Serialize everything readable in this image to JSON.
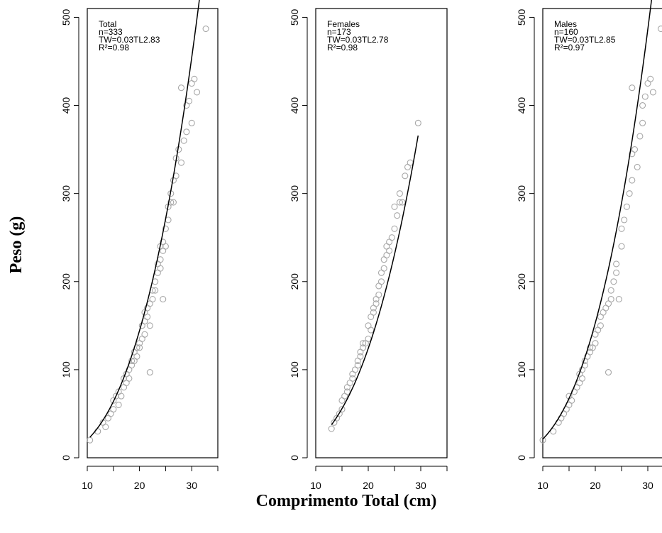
{
  "figure": {
    "ylabel": "Peso (g)",
    "xlabel": "Comprimento Total (cm)"
  },
  "chart_data": [
    {
      "type": "scatter",
      "panel": "Total",
      "legend": [
        "Total",
        "n=333",
        "TW=0.03TL2.83",
        "R²=0.98"
      ],
      "xlim": [
        10,
        35
      ],
      "ylim": [
        0,
        510
      ],
      "xticks": [
        "10",
        "20",
        "30"
      ],
      "yticks": [
        "0",
        "100",
        "200",
        "300",
        "400",
        "500"
      ],
      "fit": {
        "a": 0.03,
        "b": 2.83,
        "x_range": [
          10.5,
          32.7
        ]
      },
      "points": [
        [
          10.5,
          20
        ],
        [
          12,
          30
        ],
        [
          13,
          40
        ],
        [
          13.5,
          35
        ],
        [
          14,
          45
        ],
        [
          14.5,
          50
        ],
        [
          15,
          55
        ],
        [
          15,
          65
        ],
        [
          15.5,
          70
        ],
        [
          16,
          60
        ],
        [
          16,
          75
        ],
        [
          16.5,
          70
        ],
        [
          17,
          80
        ],
        [
          17,
          90
        ],
        [
          17.5,
          85
        ],
        [
          17.5,
          95
        ],
        [
          18,
          90
        ],
        [
          18,
          100
        ],
        [
          18.5,
          105
        ],
        [
          18.5,
          110
        ],
        [
          19,
          110
        ],
        [
          19,
          120
        ],
        [
          19.5,
          115
        ],
        [
          19.5,
          125
        ],
        [
          20,
          125
        ],
        [
          20,
          130
        ],
        [
          20.5,
          135
        ],
        [
          20.5,
          150
        ],
        [
          21,
          140
        ],
        [
          21,
          155
        ],
        [
          21,
          165
        ],
        [
          21.5,
          160
        ],
        [
          21.5,
          170
        ],
        [
          22,
          150
        ],
        [
          22,
          175
        ],
        [
          22,
          97
        ],
        [
          22.5,
          180
        ],
        [
          22.5,
          190
        ],
        [
          23,
          190
        ],
        [
          23,
          200
        ],
        [
          23.5,
          210
        ],
        [
          23.5,
          220
        ],
        [
          24,
          215
        ],
        [
          24,
          225
        ],
        [
          24,
          240
        ],
        [
          24.5,
          235
        ],
        [
          24.5,
          245
        ],
        [
          24.5,
          180
        ],
        [
          25,
          240
        ],
        [
          25,
          260
        ],
        [
          25.5,
          270
        ],
        [
          25.5,
          285
        ],
        [
          26,
          290
        ],
        [
          26,
          300
        ],
        [
          26.5,
          315
        ],
        [
          26.5,
          290
        ],
        [
          27,
          320
        ],
        [
          27,
          340
        ],
        [
          27.5,
          350
        ],
        [
          28,
          335
        ],
        [
          28.5,
          360
        ],
        [
          29,
          370
        ],
        [
          29,
          400
        ],
        [
          29.5,
          405
        ],
        [
          30,
          380
        ],
        [
          30,
          425
        ],
        [
          30.5,
          430
        ],
        [
          31,
          415
        ],
        [
          28,
          420
        ],
        [
          32.7,
          487
        ]
      ]
    },
    {
      "type": "scatter",
      "panel": "Females",
      "legend": [
        "Females",
        "n=173",
        "TW=0.03TL2.78",
        "R²=0.98"
      ],
      "xlim": [
        10,
        35
      ],
      "ylim": [
        0,
        510
      ],
      "xticks": [
        "10",
        "20",
        "30"
      ],
      "yticks": [
        "0",
        "100",
        "200",
        "300",
        "400",
        "500"
      ],
      "fit": {
        "a": 0.03,
        "b": 2.78,
        "x_range": [
          13,
          29.5
        ]
      },
      "points": [
        [
          13,
          33
        ],
        [
          13.5,
          40
        ],
        [
          14,
          45
        ],
        [
          14.5,
          50
        ],
        [
          15,
          55
        ],
        [
          15,
          65
        ],
        [
          15.5,
          70
        ],
        [
          16,
          75
        ],
        [
          16,
          80
        ],
        [
          16.5,
          85
        ],
        [
          17,
          90
        ],
        [
          17,
          95
        ],
        [
          17.5,
          100
        ],
        [
          18,
          105
        ],
        [
          18,
          110
        ],
        [
          18.5,
          115
        ],
        [
          18.5,
          120
        ],
        [
          19,
          125
        ],
        [
          19,
          130
        ],
        [
          19.5,
          130
        ],
        [
          20,
          135
        ],
        [
          20,
          150
        ],
        [
          20.5,
          145
        ],
        [
          20.5,
          160
        ],
        [
          21,
          165
        ],
        [
          21,
          170
        ],
        [
          21.5,
          175
        ],
        [
          21.5,
          180
        ],
        [
          22,
          185
        ],
        [
          22,
          195
        ],
        [
          22.5,
          200
        ],
        [
          22.5,
          210
        ],
        [
          23,
          215
        ],
        [
          23,
          225
        ],
        [
          23.5,
          230
        ],
        [
          23.5,
          240
        ],
        [
          24,
          235
        ],
        [
          24,
          245
        ],
        [
          24.5,
          250
        ],
        [
          25,
          260
        ],
        [
          25,
          285
        ],
        [
          25.5,
          275
        ],
        [
          26,
          290
        ],
        [
          26,
          300
        ],
        [
          26.5,
          290
        ],
        [
          27,
          320
        ],
        [
          27.5,
          330
        ],
        [
          28,
          335
        ],
        [
          29.5,
          380
        ]
      ]
    },
    {
      "type": "scatter",
      "panel": "Males",
      "legend": [
        "Males",
        "n=160",
        "TW=0.03TL2.85",
        "R²=0.97"
      ],
      "xlim": [
        10,
        35
      ],
      "ylim": [
        0,
        510
      ],
      "xticks": [
        "10",
        "20",
        "30"
      ],
      "yticks": [
        "0",
        "100",
        "200",
        "300",
        "400",
        "500"
      ],
      "fit": {
        "a": 0.03,
        "b": 2.85,
        "x_range": [
          10,
          32
        ]
      },
      "points": [
        [
          10,
          20
        ],
        [
          12,
          30
        ],
        [
          13,
          40
        ],
        [
          13.5,
          45
        ],
        [
          14,
          50
        ],
        [
          14.5,
          55
        ],
        [
          15,
          60
        ],
        [
          15,
          70
        ],
        [
          15.5,
          65
        ],
        [
          16,
          75
        ],
        [
          16.5,
          80
        ],
        [
          17,
          85
        ],
        [
          17,
          95
        ],
        [
          17.5,
          90
        ],
        [
          17.5,
          100
        ],
        [
          18,
          105
        ],
        [
          18,
          110
        ],
        [
          18.5,
          115
        ],
        [
          19,
          120
        ],
        [
          19,
          125
        ],
        [
          19.5,
          125
        ],
        [
          20,
          130
        ],
        [
          20,
          140
        ],
        [
          20.5,
          145
        ],
        [
          21,
          150
        ],
        [
          21,
          160
        ],
        [
          21.5,
          165
        ],
        [
          22,
          170
        ],
        [
          22.5,
          97
        ],
        [
          22.5,
          175
        ],
        [
          23,
          180
        ],
        [
          23,
          190
        ],
        [
          23.5,
          200
        ],
        [
          24,
          210
        ],
        [
          24,
          220
        ],
        [
          24.5,
          180
        ],
        [
          25,
          240
        ],
        [
          25,
          260
        ],
        [
          25.5,
          270
        ],
        [
          26,
          285
        ],
        [
          26.5,
          300
        ],
        [
          27,
          315
        ],
        [
          27,
          345
        ],
        [
          27.5,
          350
        ],
        [
          28,
          330
        ],
        [
          28.5,
          365
        ],
        [
          29,
          380
        ],
        [
          29,
          400
        ],
        [
          29.5,
          410
        ],
        [
          30,
          425
        ],
        [
          30.5,
          430
        ],
        [
          31,
          415
        ],
        [
          27,
          420
        ],
        [
          32.5,
          487
        ]
      ]
    }
  ]
}
